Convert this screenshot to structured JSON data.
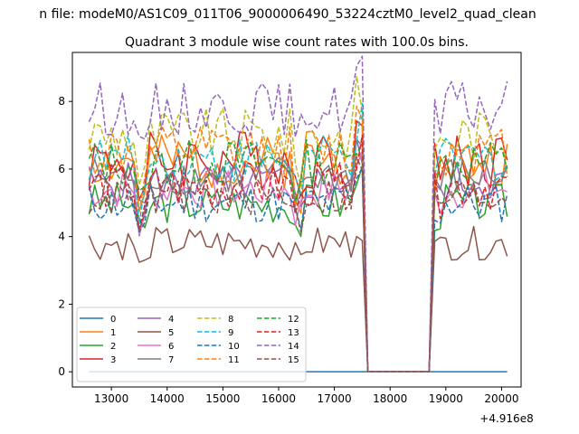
{
  "suptitle": "n file: modeM0/AS1C09_011T06_9000006490_53224cztM0_level2_quad_clean",
  "chart_data": {
    "type": "line",
    "title": "Quadrant 3 module wise count rates with 100.0s bins.",
    "xlabel": "",
    "ylabel": "",
    "x_offset_label": "+4.916e8",
    "xlim": [
      12300,
      20350
    ],
    "ylim": [
      -0.45,
      9.45
    ],
    "xticks": [
      13000,
      14000,
      15000,
      16000,
      17000,
      18000,
      19000,
      20000
    ],
    "xtick_labels": [
      "13000",
      "14000",
      "15000",
      "16000",
      "17000",
      "18000",
      "19000",
      "20000"
    ],
    "yticks": [
      0,
      2,
      4,
      6,
      8
    ],
    "ytick_labels": [
      "0",
      "2",
      "4",
      "6",
      "8"
    ],
    "grid": false,
    "legend_placement": "lower-left",
    "legend_columns": 4,
    "x_range": [
      12600,
      20100
    ],
    "bin": 100,
    "gap": [
      17600,
      18700
    ],
    "series": [
      {
        "name": "0",
        "color": "#1f77b4",
        "dash": "solid",
        "base": 0,
        "amp": 0,
        "seed": 1,
        "mult": [
          1,
          1,
          1,
          1,
          1,
          1,
          1,
          1,
          1,
          1,
          1,
          1,
          1,
          1,
          1,
          1,
          1,
          1,
          1,
          1,
          1,
          1,
          1,
          1,
          1,
          1,
          1,
          1,
          1,
          1,
          1,
          1,
          1,
          1,
          1,
          1,
          1,
          1,
          1,
          1,
          1,
          1,
          1,
          1,
          1,
          1,
          1,
          1,
          1,
          1,
          1,
          1,
          1,
          1,
          1,
          1,
          1,
          1,
          1,
          1,
          1,
          1,
          1,
          1,
          1,
          1,
          1,
          1,
          1,
          1,
          1,
          1,
          1,
          1,
          1,
          1
        ]
      },
      {
        "name": "1",
        "color": "#ff7f0e",
        "dash": "solid",
        "base": 6.2,
        "amp": 0.8,
        "seed": 2
      },
      {
        "name": "2",
        "color": "#2ca02c",
        "dash": "solid",
        "base": 5.0,
        "amp": 0.6,
        "seed": 3
      },
      {
        "name": "3",
        "color": "#d62728",
        "dash": "solid",
        "base": 6.3,
        "amp": 0.9,
        "seed": 4
      },
      {
        "name": "4",
        "color": "#9467bd",
        "dash": "solid",
        "base": 5.6,
        "amp": 0.6,
        "seed": 5
      },
      {
        "name": "5",
        "color": "#8c564b",
        "dash": "solid",
        "base": 3.8,
        "amp": 0.5,
        "seed": 6
      },
      {
        "name": "6",
        "color": "#e377c2",
        "dash": "solid",
        "base": 5.4,
        "amp": 0.6,
        "seed": 7
      },
      {
        "name": "7",
        "color": "#7f7f7f",
        "dash": "solid",
        "base": 5.8,
        "amp": 0.6,
        "seed": 8
      },
      {
        "name": "8",
        "color": "#bcbd22",
        "dash": "dashed",
        "base": 7.0,
        "amp": 0.8,
        "seed": 9
      },
      {
        "name": "9",
        "color": "#17becf",
        "dash": "dashed",
        "base": 6.3,
        "amp": 0.7,
        "seed": 10
      },
      {
        "name": "10",
        "color": "#1f77b4",
        "dash": "dashed",
        "base": 5.0,
        "amp": 0.6,
        "seed": 11
      },
      {
        "name": "11",
        "color": "#ff7f0e",
        "dash": "dashed",
        "base": 6.5,
        "amp": 0.8,
        "seed": 12
      },
      {
        "name": "12",
        "color": "#2ca02c",
        "dash": "dashed",
        "base": 6.2,
        "amp": 0.7,
        "seed": 13
      },
      {
        "name": "13",
        "color": "#d62728",
        "dash": "dashed",
        "base": 5.5,
        "amp": 0.7,
        "seed": 14
      },
      {
        "name": "14",
        "color": "#9467bd",
        "dash": "dashed",
        "base": 7.8,
        "amp": 0.8,
        "seed": 15
      },
      {
        "name": "15",
        "color": "#8c564b",
        "dash": "dashed",
        "base": 5.2,
        "amp": 0.6,
        "seed": 16
      }
    ]
  }
}
